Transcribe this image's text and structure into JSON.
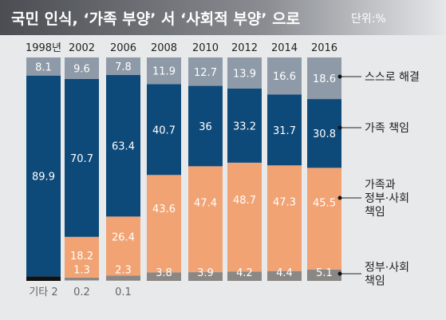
{
  "title": "국민 인식, ‘가족 부양’ 서 ‘사회적 부양’ 으로",
  "unit": "단위:%",
  "colors": {
    "self": "#8f9aa8",
    "family": "#0d4a7a",
    "both": "#f2a373",
    "gov": "#8a8784",
    "other": "#111111"
  },
  "chart_data": {
    "type": "bar",
    "stacked": true,
    "orientation": "vertical",
    "ylim": [
      0,
      100
    ],
    "categories": [
      "1998년",
      "2002",
      "2006",
      "2008",
      "2010",
      "2012",
      "2014",
      "2016"
    ],
    "series": [
      {
        "key": "other",
        "name": "기타",
        "values": [
          2,
          0.2,
          0.1,
          null,
          null,
          null,
          null,
          null
        ],
        "labels": [
          "2",
          "0.2",
          "0.1",
          "",
          "",
          "",
          "",
          ""
        ]
      },
      {
        "key": "gov",
        "name": "정부·사회 책임",
        "values": [
          null,
          1.3,
          2.3,
          3.8,
          3.9,
          4.2,
          4.4,
          5.1
        ],
        "labels": [
          "",
          "1.3",
          "2.3",
          "3.8",
          "3.9",
          "4.2",
          "4.4",
          "5.1"
        ]
      },
      {
        "key": "both",
        "name": "가족과 정부·사회 책임",
        "values": [
          null,
          18.2,
          26.4,
          43.6,
          47.4,
          48.7,
          47.3,
          45.5
        ],
        "labels": [
          "",
          "18.2",
          "26.4",
          "43.6",
          "47.4",
          "48.7",
          "47.3",
          "45.5"
        ]
      },
      {
        "key": "family",
        "name": "가족 책임",
        "values": [
          89.9,
          70.7,
          63.4,
          40.7,
          36,
          33.2,
          31.7,
          30.8
        ],
        "labels": [
          "89.9",
          "70.7",
          "63.4",
          "40.7",
          "36",
          "33.2",
          "31.7",
          "30.8"
        ]
      },
      {
        "key": "self",
        "name": "스스로 해결",
        "values": [
          8.1,
          9.6,
          7.8,
          11.9,
          12.7,
          13.9,
          16.6,
          18.6
        ],
        "labels": [
          "8.1",
          "9.6",
          "7.8",
          "11.9",
          "12.7",
          "13.9",
          "16.6",
          "18.6"
        ]
      }
    ],
    "other_label": "기타",
    "other_display": [
      "기타 2",
      "0.2",
      "0.1"
    ],
    "legend": [
      {
        "key": "self",
        "lines": [
          "스스로 해결"
        ]
      },
      {
        "key": "family",
        "lines": [
          "가족 책임"
        ]
      },
      {
        "key": "both",
        "lines": [
          "가족과",
          "정부·사회",
          "책임"
        ]
      },
      {
        "key": "gov",
        "lines": [
          "정부·사회",
          "책임"
        ]
      }
    ]
  }
}
